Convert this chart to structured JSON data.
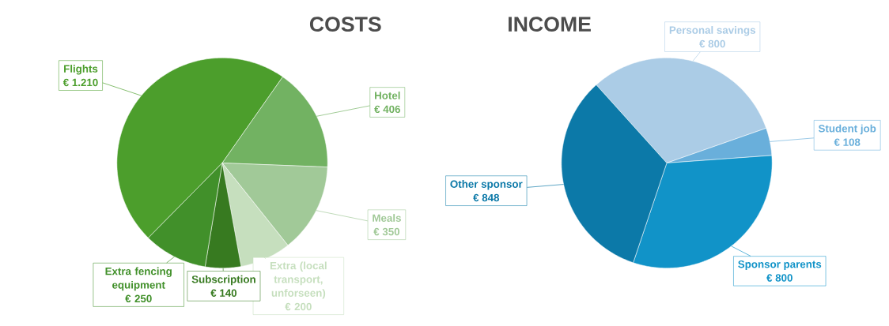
{
  "chart_data": [
    {
      "type": "pie",
      "title": "COSTS",
      "categories": [
        "Flights",
        "Hotel",
        "Meals",
        "Extra (local transport, unforseen)",
        "Subscription",
        "Extra fencing equipment"
      ],
      "values": [
        1210,
        406,
        350,
        200,
        140,
        250
      ],
      "value_labels": [
        "€ 1.210",
        "€ 406",
        "€ 350",
        "€ 200",
        "€ 140",
        "€ 250"
      ],
      "colors": [
        "#4c9e2c",
        "#72b262",
        "#a1c998",
        "#c6dfbe",
        "#377a20",
        "#41902a"
      ]
    },
    {
      "type": "pie",
      "title": "INCOME",
      "categories": [
        "Personal savings",
        "Student job",
        "Sponsor parents",
        "Other sponsor"
      ],
      "values": [
        800,
        108,
        800,
        848
      ],
      "value_labels": [
        "€ 800",
        "€ 108",
        "€ 800",
        "€ 848"
      ],
      "colors": [
        "#abcce6",
        "#69afdb",
        "#1193c8",
        "#0c79a8"
      ]
    }
  ]
}
